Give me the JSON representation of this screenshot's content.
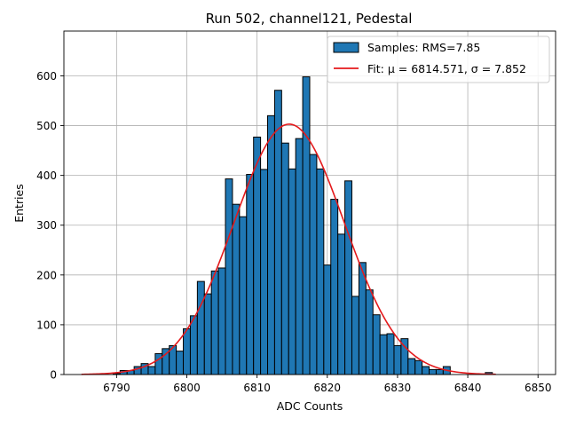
{
  "chart_data": {
    "type": "bar",
    "title": "Run 502, channel121, Pedestal",
    "xlabel": "ADC Counts",
    "ylabel": "Entries",
    "xlim": [
      6782.5,
      6852.5
    ],
    "ylim": [
      0,
      690
    ],
    "x_ticks": [
      6790,
      6800,
      6810,
      6820,
      6830,
      6840,
      6850
    ],
    "y_ticks": [
      0,
      100,
      200,
      300,
      400,
      500,
      600
    ],
    "grid": true,
    "legend_position": "top-right",
    "bin_width": 1,
    "bins": [
      [
        6785,
        0
      ],
      [
        6786,
        0
      ],
      [
        6787,
        0
      ],
      [
        6788,
        0
      ],
      [
        6789,
        0
      ],
      [
        6790,
        2
      ],
      [
        6791,
        8
      ],
      [
        6792,
        8
      ],
      [
        6793,
        16
      ],
      [
        6794,
        22
      ],
      [
        6795,
        16
      ],
      [
        6796,
        42
      ],
      [
        6797,
        52
      ],
      [
        6798,
        58
      ],
      [
        6799,
        47
      ],
      [
        6800,
        92
      ],
      [
        6801,
        118
      ],
      [
        6802,
        187
      ],
      [
        6803,
        162
      ],
      [
        6804,
        208
      ],
      [
        6805,
        214
      ],
      [
        6806,
        393
      ],
      [
        6807,
        342
      ],
      [
        6808,
        317
      ],
      [
        6809,
        402
      ],
      [
        6810,
        477
      ],
      [
        6811,
        412
      ],
      [
        6812,
        520
      ],
      [
        6813,
        571
      ],
      [
        6814,
        465
      ],
      [
        6815,
        413
      ],
      [
        6816,
        474
      ],
      [
        6817,
        598
      ],
      [
        6818,
        442
      ],
      [
        6819,
        413
      ],
      [
        6820,
        220
      ],
      [
        6821,
        352
      ],
      [
        6822,
        282
      ],
      [
        6823,
        389
      ],
      [
        6824,
        157
      ],
      [
        6825,
        225
      ],
      [
        6826,
        170
      ],
      [
        6827,
        120
      ],
      [
        6828,
        80
      ],
      [
        6829,
        82
      ],
      [
        6830,
        58
      ],
      [
        6831,
        72
      ],
      [
        6832,
        32
      ],
      [
        6833,
        28
      ],
      [
        6834,
        16
      ],
      [
        6835,
        10
      ],
      [
        6836,
        10
      ],
      [
        6837,
        16
      ],
      [
        6838,
        0
      ],
      [
        6839,
        0
      ],
      [
        6840,
        0
      ],
      [
        6841,
        0
      ],
      [
        6842,
        0
      ],
      [
        6843,
        4
      ]
    ],
    "series": [
      {
        "name": "Samples: RMS=7.85",
        "kind": "histogram",
        "color": "#1f77b4",
        "edge_color": "#000000"
      },
      {
        "name": "Fit: μ = 6814.571, σ = 7.852",
        "kind": "line",
        "color": "#e41a1c",
        "mu": 6814.571,
        "sigma": 7.852,
        "amplitude": 503,
        "x_range": [
          6785,
          6844
        ]
      }
    ]
  }
}
